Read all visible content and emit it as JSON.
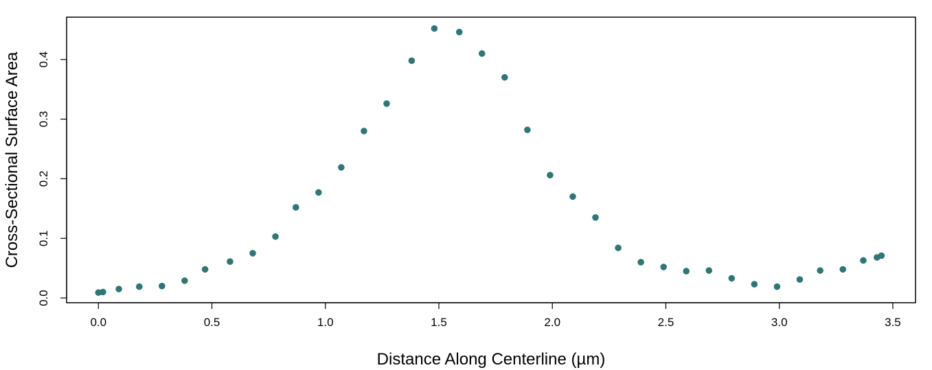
{
  "chart_data": {
    "type": "scatter",
    "title": "",
    "xlabel": "Distance Along Centerline (µm)",
    "ylabel": "Cross-Sectional Surface Area",
    "xlim": [
      -0.14,
      3.6
    ],
    "ylim": [
      -0.008,
      0.471
    ],
    "x_ticks": [
      0.0,
      0.5,
      1.0,
      1.5,
      2.0,
      2.5,
      3.0,
      3.5
    ],
    "x_tick_labels": [
      "0.0",
      "0.5",
      "1.0",
      "1.5",
      "2.0",
      "2.5",
      "3.0",
      "3.5"
    ],
    "y_ticks": [
      0.0,
      0.1,
      0.2,
      0.3,
      0.4
    ],
    "y_tick_labels": [
      "0.0",
      "0.1",
      "0.2",
      "0.3",
      "0.4"
    ],
    "grid": false,
    "marker_color": "#2f7676",
    "series": [
      {
        "x": [
          0.0,
          0.02,
          0.09,
          0.18,
          0.28,
          0.38,
          0.47,
          0.58,
          0.68,
          0.78,
          0.87,
          0.97,
          1.07,
          1.17,
          1.27,
          1.38,
          1.48,
          1.59,
          1.69,
          1.79,
          1.89,
          1.99,
          2.09,
          2.19,
          2.29,
          2.39,
          2.49,
          2.59,
          2.69,
          2.79,
          2.89,
          2.99,
          3.09,
          3.18,
          3.28,
          3.37,
          3.43,
          3.45
        ],
        "y": [
          0.009,
          0.01,
          0.015,
          0.019,
          0.02,
          0.029,
          0.048,
          0.061,
          0.075,
          0.103,
          0.152,
          0.177,
          0.219,
          0.28,
          0.326,
          0.398,
          0.452,
          0.446,
          0.41,
          0.37,
          0.282,
          0.206,
          0.17,
          0.135,
          0.084,
          0.06,
          0.052,
          0.045,
          0.046,
          0.033,
          0.023,
          0.019,
          0.031,
          0.046,
          0.048,
          0.063,
          0.068,
          0.071
        ]
      }
    ]
  }
}
